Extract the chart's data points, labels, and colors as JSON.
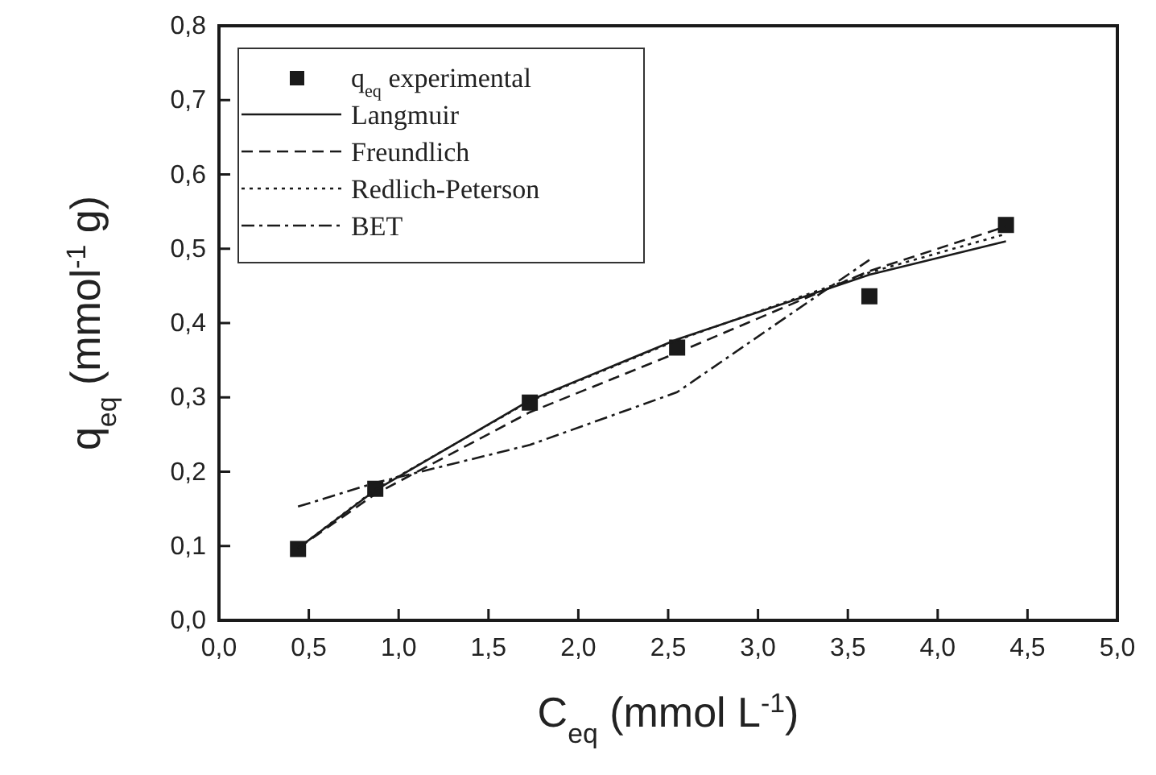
{
  "chart_data": {
    "type": "line",
    "xlabel": "C$_{eq}$ (mmol L$^{-1}$)",
    "ylabel": "q$_{eq}$ (mmol$^{-1}$ g)",
    "x": [
      0.44,
      0.87,
      1.73,
      2.55,
      3.62,
      4.38
    ],
    "series": [
      {
        "name": "q$_{eq}$ experimental",
        "type": "scatter",
        "marker": "square",
        "color": "#1a1a1a",
        "values": [
          0.096,
          0.177,
          0.293,
          0.367,
          0.436,
          0.532
        ]
      },
      {
        "name": "Langmuir",
        "line_style": "solid",
        "color": "#1a1a1a",
        "values": [
          0.097,
          0.175,
          0.296,
          0.378,
          0.465,
          0.51
        ]
      },
      {
        "name": "Freundlich",
        "line_style": "dashed",
        "color": "#1a1a1a",
        "values": [
          0.097,
          0.17,
          0.28,
          0.36,
          0.47,
          0.53
        ]
      },
      {
        "name": "Redlich-Peterson",
        "line_style": "dotted",
        "color": "#1a1a1a",
        "values": [
          0.097,
          0.176,
          0.295,
          0.377,
          0.468,
          0.52
        ]
      },
      {
        "name": "BET",
        "line_style": "dashdot",
        "color": "#1a1a1a",
        "values": [
          0.153,
          0.185,
          0.236,
          0.307,
          0.485,
          null
        ]
      }
    ],
    "xlim": [
      0,
      5
    ],
    "ylim": [
      0,
      0.8
    ],
    "xticks": [
      {
        "value": 0,
        "label": "0,0"
      },
      {
        "value": 0.5,
        "label": "0,5"
      },
      {
        "value": 1,
        "label": "1,0"
      },
      {
        "value": 1.5,
        "label": "1,5"
      },
      {
        "value": 2,
        "label": "2,0"
      },
      {
        "value": 2.5,
        "label": "2,5"
      },
      {
        "value": 3,
        "label": "3,0"
      },
      {
        "value": 3.5,
        "label": "3,5"
      },
      {
        "value": 4,
        "label": "4,0"
      },
      {
        "value": 4.5,
        "label": "4,5"
      },
      {
        "value": 5,
        "label": "5,0"
      }
    ],
    "yticks": [
      {
        "value": 0,
        "label": "0,0"
      },
      {
        "value": 0.1,
        "label": "0,1"
      },
      {
        "value": 0.2,
        "label": "0,2"
      },
      {
        "value": 0.3,
        "label": "0,3"
      },
      {
        "value": 0.4,
        "label": "0,4"
      },
      {
        "value": 0.5,
        "label": "0,5"
      },
      {
        "value": 0.6,
        "label": "0,6"
      },
      {
        "value": 0.7,
        "label": "0,7"
      },
      {
        "value": 0.8,
        "label": "0,8"
      }
    ],
    "grid": false,
    "legend": "top left"
  }
}
